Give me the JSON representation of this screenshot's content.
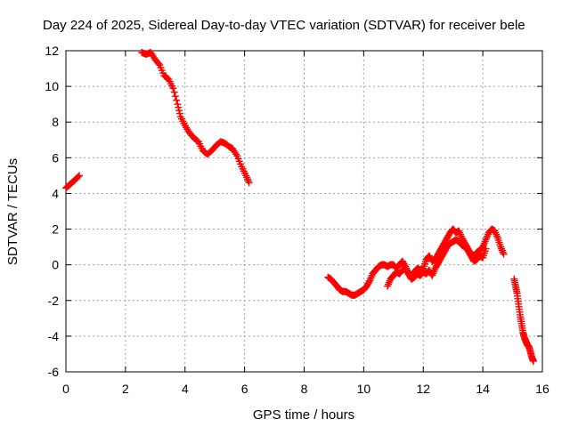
{
  "chart_data": {
    "type": "scatter",
    "title": "Day 224 of 2025, Sidereal Day-to-day VTEC variation (SDTVAR) for receiver bele",
    "xlabel": "GPS time / hours",
    "ylabel": "SDTVAR / TECUs",
    "xlim": [
      0,
      16
    ],
    "ylim": [
      -6,
      12
    ],
    "x_ticks": [
      0,
      2,
      4,
      6,
      8,
      10,
      12,
      14,
      16
    ],
    "y_ticks": [
      -6,
      -4,
      -2,
      0,
      2,
      4,
      6,
      8,
      10,
      12
    ],
    "grid": true,
    "marker": "+",
    "series": [
      {
        "name": "SDTVAR",
        "color": "#ff0000",
        "segments": [
          {
            "x": [
              0.0,
              0.1,
              0.2,
              0.3,
              0.45
            ],
            "y": [
              4.3,
              4.45,
              4.6,
              4.75,
              5.0
            ]
          },
          {
            "x": [
              2.55,
              2.7,
              2.85,
              3.0,
              3.15,
              3.3,
              3.45,
              3.6,
              3.75,
              3.85,
              4.0,
              4.15,
              4.3,
              4.45,
              4.6,
              4.75,
              4.9,
              5.05,
              5.2,
              5.35,
              5.5,
              5.6,
              5.75,
              5.9,
              6.05,
              6.15
            ],
            "y": [
              11.9,
              11.8,
              11.9,
              11.5,
              11.2,
              10.6,
              10.4,
              9.9,
              9.0,
              8.3,
              7.8,
              7.4,
              7.1,
              6.9,
              6.4,
              6.2,
              6.4,
              6.7,
              6.9,
              6.8,
              6.6,
              6.5,
              6.1,
              5.5,
              5.0,
              4.6
            ]
          },
          {
            "x": [
              8.8,
              8.9,
              9.0,
              9.1,
              9.2,
              9.3,
              9.4,
              9.5,
              9.6,
              9.7,
              9.8,
              9.9,
              10.0,
              10.1,
              10.2,
              10.3,
              10.4,
              10.5,
              10.6,
              10.7,
              10.8,
              10.9,
              11.0,
              11.1,
              11.2,
              11.3,
              11.4,
              11.5,
              11.6,
              11.7,
              11.8,
              11.9,
              12.0,
              12.1,
              12.2,
              12.3,
              12.4,
              12.5,
              12.6,
              12.7,
              12.8,
              12.9,
              13.0,
              13.1,
              13.2,
              13.3,
              13.4,
              13.5,
              13.6,
              13.7,
              13.8,
              13.9,
              14.0,
              14.1,
              14.2,
              14.3,
              14.4,
              14.5,
              14.6,
              14.7
            ],
            "y": [
              -0.7,
              -0.8,
              -1.0,
              -1.2,
              -1.4,
              -1.5,
              -1.5,
              -1.6,
              -1.7,
              -1.7,
              -1.6,
              -1.5,
              -1.4,
              -1.2,
              -0.9,
              -0.5,
              -0.3,
              -0.1,
              0.0,
              0.0,
              -0.1,
              0.0,
              0.0,
              -0.2,
              0.0,
              0.2,
              -0.1,
              -0.5,
              -0.6,
              -0.4,
              -0.2,
              -0.3,
              -0.2,
              0.3,
              0.5,
              0.2,
              0.3,
              0.6,
              0.9,
              1.2,
              1.5,
              1.8,
              2.0,
              1.8,
              1.9,
              1.5,
              1.2,
              0.9,
              0.6,
              0.5,
              0.7,
              0.8,
              1.0,
              1.4,
              1.8,
              2.0,
              1.9,
              1.5,
              1.0,
              0.6
            ]
          },
          {
            "x": [
              10.8,
              10.9,
              11.0,
              11.1,
              11.2,
              11.3,
              11.4,
              11.5,
              11.6,
              11.7,
              11.8,
              11.9,
              12.0,
              12.1,
              12.2,
              12.3,
              12.4,
              12.5,
              12.6,
              12.7,
              12.8,
              12.9,
              13.0,
              13.1,
              13.2,
              13.3,
              13.4,
              13.5,
              13.6,
              13.7,
              13.8,
              13.9,
              14.0,
              14.1
            ],
            "y": [
              -1.2,
              -0.8,
              -0.6,
              -0.4,
              -0.5,
              -0.3,
              -0.2,
              -0.5,
              -0.8,
              -0.7,
              -0.5,
              -0.6,
              -0.4,
              -0.5,
              -0.3,
              -0.6,
              -0.2,
              0.1,
              0.4,
              0.7,
              1.0,
              1.2,
              1.3,
              1.4,
              1.3,
              1.1,
              1.0,
              0.8,
              0.5,
              0.2,
              0.3,
              0.5,
              0.4,
              0.9
            ]
          },
          {
            "x": [
              15.05,
              15.1,
              15.15,
              15.2,
              15.25,
              15.3,
              15.35,
              15.4,
              15.45,
              15.5,
              15.55,
              15.6,
              15.65,
              15.7
            ],
            "y": [
              -0.8,
              -1.2,
              -1.6,
              -2.2,
              -2.8,
              -3.3,
              -3.8,
              -4.1,
              -4.3,
              -4.5,
              -4.6,
              -4.9,
              -5.2,
              -5.4
            ]
          }
        ]
      }
    ]
  }
}
